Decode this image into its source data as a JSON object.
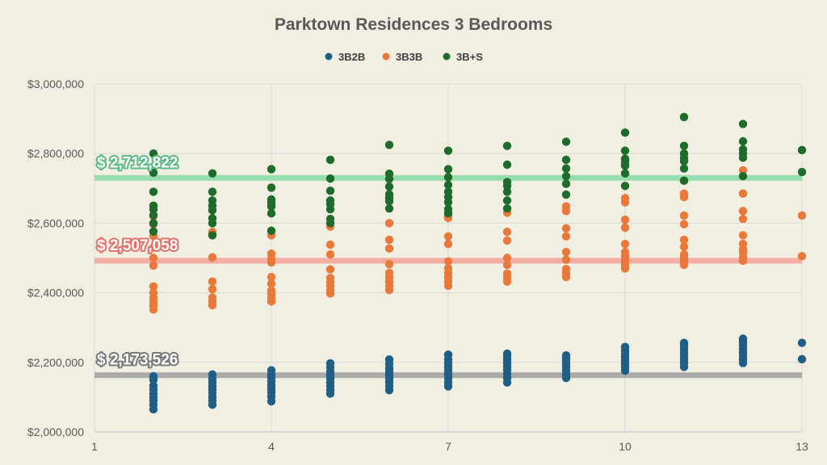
{
  "chart_data": {
    "type": "scatter",
    "title": "Parktown Residences 3 Bedrooms",
    "xlabel": "",
    "ylabel": "",
    "xlim": [
      1,
      13
    ],
    "ylim": [
      2000000,
      3000000
    ],
    "x_ticks": [
      "1",
      "4",
      "7",
      "10",
      "13"
    ],
    "x_tick_values": [
      1,
      4,
      7,
      10,
      13
    ],
    "y_ticks": [
      "$2,000,000",
      "$2,200,000",
      "$2,400,000",
      "$2,600,000",
      "$2,800,000",
      "$3,000,000"
    ],
    "y_tick_values": [
      2000000,
      2200000,
      2400000,
      2600000,
      2800000,
      3000000
    ],
    "grid": "both",
    "legend_position": "top",
    "series": [
      {
        "name": "3B2B",
        "color": "#1f5f86",
        "points": [
          [
            2,
            2065000
          ],
          [
            2,
            2078000
          ],
          [
            2,
            2090000
          ],
          [
            2,
            2100000
          ],
          [
            2,
            2110000
          ],
          [
            2,
            2122000
          ],
          [
            2,
            2133000
          ],
          [
            2,
            2150000
          ],
          [
            2,
            2160000
          ],
          [
            3,
            2078000
          ],
          [
            3,
            2090000
          ],
          [
            3,
            2100000
          ],
          [
            3,
            2112000
          ],
          [
            3,
            2122000
          ],
          [
            3,
            2132000
          ],
          [
            3,
            2142000
          ],
          [
            3,
            2152000
          ],
          [
            3,
            2165000
          ],
          [
            4,
            2088000
          ],
          [
            4,
            2102000
          ],
          [
            4,
            2114000
          ],
          [
            4,
            2124000
          ],
          [
            4,
            2134000
          ],
          [
            4,
            2145000
          ],
          [
            4,
            2155000
          ],
          [
            4,
            2165000
          ],
          [
            4,
            2177000
          ],
          [
            5,
            2110000
          ],
          [
            5,
            2120000
          ],
          [
            5,
            2132000
          ],
          [
            5,
            2143000
          ],
          [
            5,
            2153000
          ],
          [
            5,
            2163000
          ],
          [
            5,
            2173000
          ],
          [
            5,
            2185000
          ],
          [
            5,
            2197000
          ],
          [
            6,
            2120000
          ],
          [
            6,
            2132000
          ],
          [
            6,
            2143000
          ],
          [
            6,
            2153000
          ],
          [
            6,
            2163000
          ],
          [
            6,
            2173000
          ],
          [
            6,
            2183000
          ],
          [
            6,
            2195000
          ],
          [
            6,
            2208000
          ],
          [
            7,
            2131000
          ],
          [
            7,
            2143000
          ],
          [
            7,
            2155000
          ],
          [
            7,
            2165000
          ],
          [
            7,
            2176000
          ],
          [
            7,
            2186000
          ],
          [
            7,
            2197000
          ],
          [
            7,
            2208000
          ],
          [
            7,
            2222000
          ],
          [
            8,
            2142000
          ],
          [
            8,
            2155000
          ],
          [
            8,
            2167000
          ],
          [
            8,
            2178000
          ],
          [
            8,
            2188000
          ],
          [
            8,
            2198000
          ],
          [
            8,
            2208000
          ],
          [
            8,
            2218000
          ],
          [
            8,
            2225000
          ],
          [
            9,
            2155000
          ],
          [
            9,
            2166000
          ],
          [
            9,
            2177000
          ],
          [
            9,
            2187000
          ],
          [
            9,
            2196000
          ],
          [
            9,
            2205000
          ],
          [
            9,
            2214000
          ],
          [
            9,
            2220000
          ],
          [
            10,
            2176000
          ],
          [
            10,
            2186000
          ],
          [
            10,
            2196000
          ],
          [
            10,
            2206000
          ],
          [
            10,
            2214000
          ],
          [
            10,
            2224000
          ],
          [
            10,
            2234000
          ],
          [
            10,
            2244000
          ],
          [
            11,
            2187000
          ],
          [
            11,
            2198000
          ],
          [
            11,
            2208000
          ],
          [
            11,
            2218000
          ],
          [
            11,
            2228000
          ],
          [
            11,
            2238000
          ],
          [
            11,
            2248000
          ],
          [
            11,
            2256000
          ],
          [
            12,
            2198000
          ],
          [
            12,
            2208000
          ],
          [
            12,
            2218000
          ],
          [
            12,
            2228000
          ],
          [
            12,
            2238000
          ],
          [
            12,
            2248000
          ],
          [
            12,
            2258000
          ],
          [
            12,
            2268000
          ],
          [
            13,
            2209000
          ],
          [
            13,
            2256000
          ]
        ]
      },
      {
        "name": "3B3B",
        "color": "#e8793a",
        "points": [
          [
            2,
            2352000
          ],
          [
            2,
            2363000
          ],
          [
            2,
            2373000
          ],
          [
            2,
            2385000
          ],
          [
            2,
            2400000
          ],
          [
            2,
            2418000
          ],
          [
            2,
            2478000
          ],
          [
            2,
            2500000
          ],
          [
            2,
            2530000
          ],
          [
            2,
            2563000
          ],
          [
            2,
            2597000
          ],
          [
            2,
            2620000
          ],
          [
            3,
            2364000
          ],
          [
            3,
            2375000
          ],
          [
            3,
            2386000
          ],
          [
            3,
            2410000
          ],
          [
            3,
            2432000
          ],
          [
            3,
            2502000
          ],
          [
            3,
            2570000
          ],
          [
            3,
            2575000
          ],
          [
            4,
            2375000
          ],
          [
            4,
            2385000
          ],
          [
            4,
            2396000
          ],
          [
            4,
            2406000
          ],
          [
            4,
            2426000
          ],
          [
            4,
            2445000
          ],
          [
            4,
            2487000
          ],
          [
            4,
            2498000
          ],
          [
            4,
            2512000
          ],
          [
            4,
            2565000
          ],
          [
            5,
            2398000
          ],
          [
            5,
            2408000
          ],
          [
            5,
            2420000
          ],
          [
            5,
            2430000
          ],
          [
            5,
            2442000
          ],
          [
            5,
            2467000
          ],
          [
            5,
            2510000
          ],
          [
            5,
            2538000
          ],
          [
            5,
            2590000
          ],
          [
            6,
            2408000
          ],
          [
            6,
            2420000
          ],
          [
            6,
            2432000
          ],
          [
            6,
            2445000
          ],
          [
            6,
            2457000
          ],
          [
            6,
            2482000
          ],
          [
            6,
            2527000
          ],
          [
            6,
            2552000
          ],
          [
            6,
            2600000
          ],
          [
            7,
            2420000
          ],
          [
            7,
            2432000
          ],
          [
            7,
            2445000
          ],
          [
            7,
            2457000
          ],
          [
            7,
            2470000
          ],
          [
            7,
            2490000
          ],
          [
            7,
            2540000
          ],
          [
            7,
            2562000
          ],
          [
            7,
            2615000
          ],
          [
            7,
            2620000
          ],
          [
            8,
            2432000
          ],
          [
            8,
            2443000
          ],
          [
            8,
            2455000
          ],
          [
            8,
            2480000
          ],
          [
            8,
            2500000
          ],
          [
            8,
            2550000
          ],
          [
            8,
            2575000
          ],
          [
            8,
            2630000
          ],
          [
            9,
            2445000
          ],
          [
            9,
            2457000
          ],
          [
            9,
            2468000
          ],
          [
            9,
            2495000
          ],
          [
            9,
            2517000
          ],
          [
            9,
            2562000
          ],
          [
            9,
            2585000
          ],
          [
            9,
            2635000
          ],
          [
            9,
            2648000
          ],
          [
            10,
            2470000
          ],
          [
            10,
            2480000
          ],
          [
            10,
            2492000
          ],
          [
            10,
            2505000
          ],
          [
            10,
            2517000
          ],
          [
            10,
            2540000
          ],
          [
            10,
            2587000
          ],
          [
            10,
            2610000
          ],
          [
            10,
            2660000
          ],
          [
            10,
            2672000
          ],
          [
            11,
            2480000
          ],
          [
            11,
            2490000
          ],
          [
            11,
            2500000
          ],
          [
            11,
            2510000
          ],
          [
            11,
            2532000
          ],
          [
            11,
            2552000
          ],
          [
            11,
            2597000
          ],
          [
            11,
            2622000
          ],
          [
            11,
            2675000
          ],
          [
            11,
            2685000
          ],
          [
            12,
            2492000
          ],
          [
            12,
            2502000
          ],
          [
            12,
            2515000
          ],
          [
            12,
            2525000
          ],
          [
            12,
            2540000
          ],
          [
            12,
            2565000
          ],
          [
            12,
            2612000
          ],
          [
            12,
            2635000
          ],
          [
            12,
            2685000
          ],
          [
            12,
            2752000
          ],
          [
            13,
            2505000
          ],
          [
            13,
            2622000
          ]
        ]
      },
      {
        "name": "3B+S",
        "color": "#1e6b2b",
        "points": [
          [
            2,
            2576000
          ],
          [
            2,
            2600000
          ],
          [
            2,
            2623000
          ],
          [
            2,
            2640000
          ],
          [
            2,
            2650000
          ],
          [
            2,
            2690000
          ],
          [
            2,
            2745000
          ],
          [
            2,
            2800000
          ],
          [
            3,
            2565000
          ],
          [
            3,
            2600000
          ],
          [
            3,
            2614000
          ],
          [
            3,
            2637000
          ],
          [
            3,
            2650000
          ],
          [
            3,
            2665000
          ],
          [
            3,
            2690000
          ],
          [
            3,
            2743000
          ],
          [
            4,
            2578000
          ],
          [
            4,
            2628000
          ],
          [
            4,
            2648000
          ],
          [
            4,
            2658000
          ],
          [
            4,
            2668000
          ],
          [
            4,
            2702000
          ],
          [
            4,
            2755000
          ],
          [
            5,
            2600000
          ],
          [
            5,
            2612000
          ],
          [
            5,
            2640000
          ],
          [
            5,
            2655000
          ],
          [
            5,
            2665000
          ],
          [
            5,
            2693000
          ],
          [
            5,
            2728000
          ],
          [
            5,
            2782000
          ],
          [
            6,
            2642000
          ],
          [
            6,
            2663000
          ],
          [
            6,
            2673000
          ],
          [
            6,
            2683000
          ],
          [
            6,
            2705000
          ],
          [
            6,
            2727000
          ],
          [
            6,
            2742000
          ],
          [
            6,
            2825000
          ],
          [
            7,
            2628000
          ],
          [
            7,
            2640000
          ],
          [
            7,
            2660000
          ],
          [
            7,
            2675000
          ],
          [
            7,
            2690000
          ],
          [
            7,
            2710000
          ],
          [
            7,
            2732000
          ],
          [
            7,
            2755000
          ],
          [
            7,
            2808000
          ],
          [
            8,
            2642000
          ],
          [
            8,
            2665000
          ],
          [
            8,
            2690000
          ],
          [
            8,
            2707000
          ],
          [
            8,
            2718000
          ],
          [
            8,
            2768000
          ],
          [
            8,
            2822000
          ],
          [
            9,
            2682000
          ],
          [
            9,
            2713000
          ],
          [
            9,
            2735000
          ],
          [
            9,
            2757000
          ],
          [
            9,
            2782000
          ],
          [
            9,
            2834000
          ],
          [
            10,
            2707000
          ],
          [
            10,
            2743000
          ],
          [
            10,
            2765000
          ],
          [
            10,
            2775000
          ],
          [
            10,
            2785000
          ],
          [
            10,
            2808000
          ],
          [
            10,
            2860000
          ],
          [
            11,
            2722000
          ],
          [
            11,
            2757000
          ],
          [
            11,
            2778000
          ],
          [
            11,
            2787000
          ],
          [
            11,
            2800000
          ],
          [
            11,
            2822000
          ],
          [
            11,
            2905000
          ],
          [
            12,
            2735000
          ],
          [
            12,
            2788000
          ],
          [
            12,
            2800000
          ],
          [
            12,
            2812000
          ],
          [
            12,
            2835000
          ],
          [
            12,
            2885000
          ],
          [
            13,
            2747000
          ],
          [
            13,
            2810000
          ]
        ]
      }
    ],
    "reference_lines": [
      {
        "label": "$ 2,712,822",
        "y": 2730000,
        "color": "#8fdcaa",
        "text_stroke": "#59b985"
      },
      {
        "label": "$ 2,507,058",
        "y": 2492000,
        "color": "#f4a69c",
        "text_stroke": "#e3716a"
      },
      {
        "label": "$ 2,173,526",
        "y": 2163000,
        "color": "#a3a3a3",
        "text_stroke": "#7a7a7a"
      }
    ]
  }
}
